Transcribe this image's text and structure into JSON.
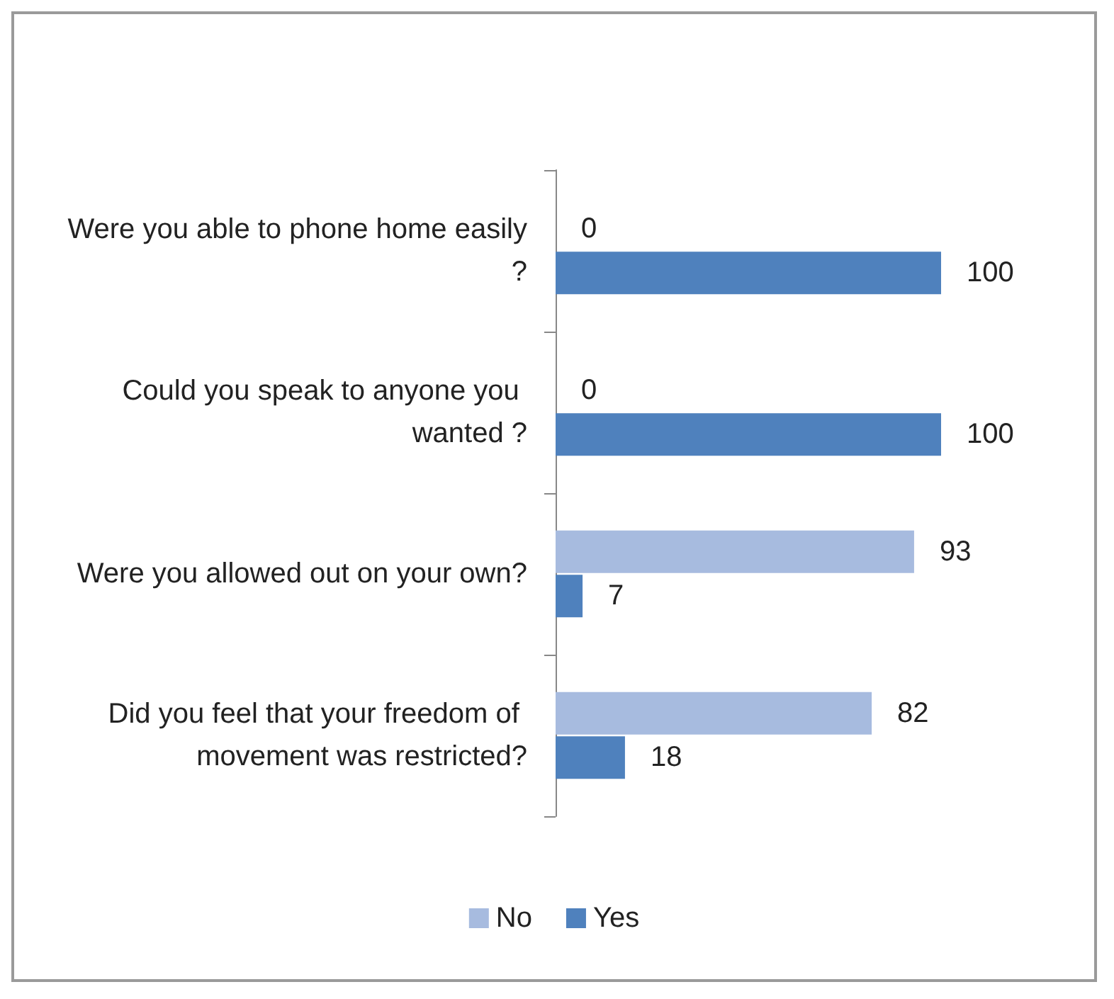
{
  "chart_data": {
    "type": "bar",
    "orientation": "horizontal",
    "categories": [
      "Were you able to phone home easily?",
      "Could you speak to anyone you wanted ?",
      "Were you allowed out on your own?",
      "Did you feel that your freedom of movement was restricted?"
    ],
    "series": [
      {
        "name": "No",
        "color": "#a7bbdf",
        "values": [
          0,
          0,
          93,
          82
        ]
      },
      {
        "name": "Yes",
        "color": "#4f81bd",
        "values": [
          100,
          100,
          7,
          18
        ]
      }
    ],
    "data_labels": true,
    "legend": "bottom"
  }
}
